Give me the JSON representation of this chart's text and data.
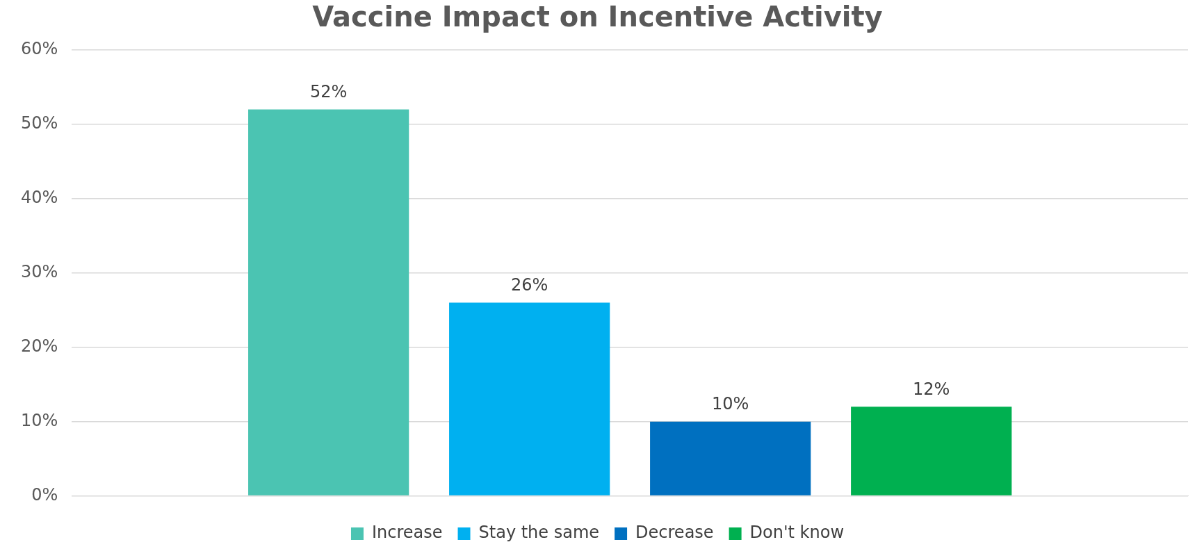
{
  "chart_data": {
    "type": "bar",
    "title": "Vaccine Impact on Incentive Activity",
    "categories": [
      null
    ],
    "series": [
      {
        "name": "Increase",
        "color": "#4bc4b2",
        "values": [
          52
        ],
        "value_labels": [
          "52%"
        ]
      },
      {
        "name": "Stay the same",
        "color": "#00b0f0",
        "values": [
          26
        ],
        "value_labels": [
          "26%"
        ]
      },
      {
        "name": "Decrease",
        "color": "#0070c0",
        "values": [
          10
        ],
        "value_labels": [
          "10%"
        ]
      },
      {
        "name": "Don't know",
        "color": "#00b050",
        "values": [
          12
        ],
        "value_labels": [
          "12%"
        ]
      }
    ],
    "ylim": [
      0,
      60
    ],
    "yticks": [
      {
        "value": 0,
        "label": "0%"
      },
      {
        "value": 10,
        "label": "10%"
      },
      {
        "value": 20,
        "label": "20%"
      },
      {
        "value": 30,
        "label": "30%"
      },
      {
        "value": 40,
        "label": "40%"
      },
      {
        "value": 50,
        "label": "50%"
      },
      {
        "value": 60,
        "label": "60%"
      }
    ],
    "grid": "y",
    "legend": "bottom"
  }
}
